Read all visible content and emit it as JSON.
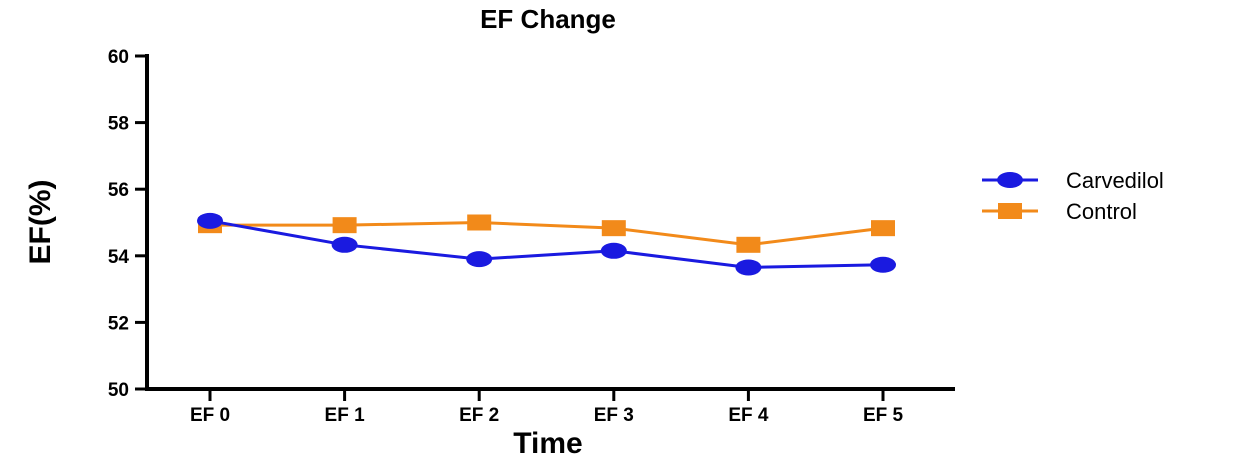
{
  "chart_data": {
    "type": "line",
    "title": "EF Change",
    "xlabel": "Time",
    "ylabel": "EF(%)",
    "categories": [
      "EF 0",
      "EF 1",
      "EF 2",
      "EF 3",
      "EF 4",
      "EF 5"
    ],
    "ylim": [
      50,
      60
    ],
    "yticks": [
      50,
      52,
      54,
      56,
      58,
      60
    ],
    "grid": false,
    "legend_position": "right",
    "series": [
      {
        "name": "Carvedilol",
        "values": [
          55.05,
          54.33,
          53.9,
          54.15,
          53.65,
          53.73
        ],
        "color": "#1a1ae0",
        "marker": "circle"
      },
      {
        "name": "Control",
        "values": [
          54.92,
          54.92,
          55.0,
          54.83,
          54.33,
          54.83
        ],
        "color": "#f28a1a",
        "marker": "square"
      }
    ]
  }
}
